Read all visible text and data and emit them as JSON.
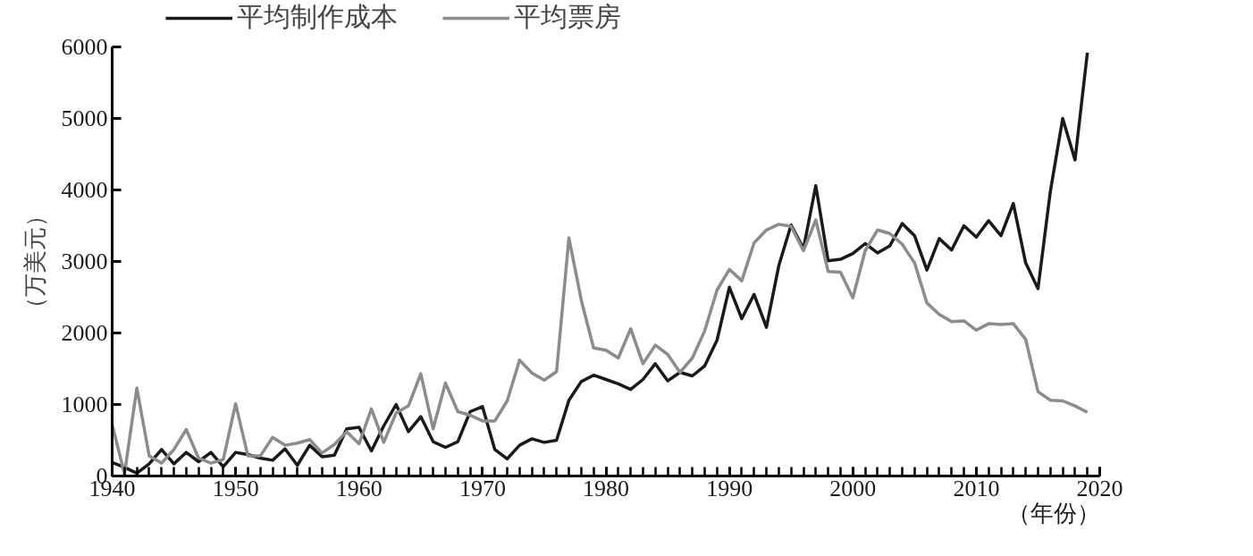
{
  "chart_data": {
    "type": "line",
    "xlabel": "（年份）",
    "ylabel": "（万美元）",
    "x": [
      1940,
      1941,
      1942,
      1943,
      1944,
      1945,
      1946,
      1947,
      1948,
      1949,
      1950,
      1951,
      1952,
      1953,
      1954,
      1955,
      1956,
      1957,
      1958,
      1959,
      1960,
      1961,
      1962,
      1963,
      1964,
      1965,
      1966,
      1967,
      1968,
      1969,
      1970,
      1971,
      1972,
      1973,
      1974,
      1975,
      1976,
      1977,
      1978,
      1979,
      1980,
      1981,
      1982,
      1983,
      1984,
      1985,
      1986,
      1987,
      1988,
      1989,
      1990,
      1991,
      1992,
      1993,
      1994,
      1995,
      1996,
      1997,
      1998,
      1999,
      2000,
      2001,
      2002,
      2003,
      2004,
      2005,
      2006,
      2007,
      2008,
      2009,
      2010,
      2011,
      2012,
      2013,
      2014,
      2015,
      2016,
      2017,
      2018,
      2019
    ],
    "series": [
      {
        "name": "平均制作成本",
        "color": "#1a1a1a",
        "values": [
          190,
          120,
          40,
          170,
          370,
          170,
          330,
          200,
          330,
          130,
          330,
          300,
          250,
          220,
          380,
          150,
          430,
          270,
          290,
          660,
          680,
          350,
          700,
          1000,
          620,
          830,
          480,
          400,
          480,
          900,
          970,
          370,
          240,
          430,
          520,
          470,
          500,
          1060,
          1320,
          1410,
          1350,
          1290,
          1210,
          1350,
          1570,
          1330,
          1450,
          1400,
          1540,
          1900,
          2640,
          2200,
          2540,
          2080,
          2940,
          3510,
          3180,
          4060,
          3010,
          3030,
          3110,
          3250,
          3120,
          3220,
          3530,
          3360,
          2880,
          3320,
          3160,
          3500,
          3340,
          3570,
          3360,
          3810,
          2980,
          2620,
          3980,
          5000,
          4420,
          5920
        ]
      },
      {
        "name": "平均票房",
        "color": "#8c8c8c",
        "values": [
          720,
          30,
          1230,
          280,
          180,
          370,
          650,
          250,
          180,
          230,
          1010,
          280,
          280,
          540,
          430,
          460,
          510,
          320,
          440,
          620,
          450,
          940,
          470,
          880,
          980,
          1430,
          660,
          1300,
          900,
          850,
          770,
          770,
          1050,
          1620,
          1440,
          1340,
          1460,
          3330,
          2460,
          1790,
          1760,
          1650,
          2060,
          1570,
          1830,
          1700,
          1450,
          1650,
          2030,
          2600,
          2890,
          2730,
          3260,
          3440,
          3520,
          3490,
          3150,
          3580,
          2860,
          2850,
          2490,
          3150,
          3440,
          3390,
          3240,
          2980,
          2420,
          2260,
          2160,
          2170,
          2040,
          2130,
          2120,
          2130,
          1910,
          1180,
          1060,
          1050,
          980,
          890
        ]
      }
    ],
    "xlim": [
      1940,
      2020
    ],
    "xticks": [
      1940,
      1950,
      1960,
      1970,
      1980,
      1990,
      2000,
      2010,
      2020
    ],
    "ylim": [
      0,
      6000
    ],
    "yticks": [
      0,
      1000,
      2000,
      3000,
      4000,
      5000,
      6000
    ],
    "grid": false,
    "legend": "top",
    "marker": "none",
    "line_style": "solid"
  }
}
